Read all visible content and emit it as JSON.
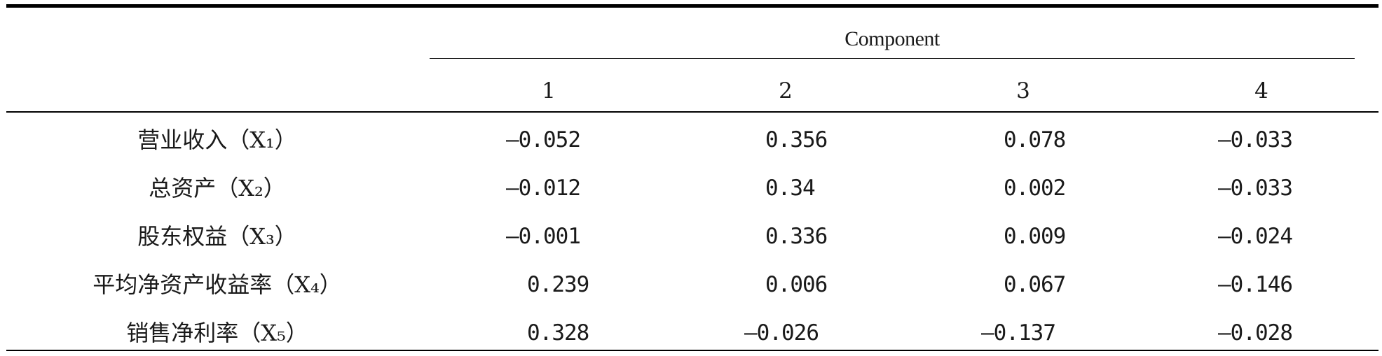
{
  "table": {
    "component_header": "Component",
    "columns": [
      "1",
      "2",
      "3",
      "4"
    ],
    "rows": [
      {
        "label": "营业收入（X₁）",
        "values": [
          "—0.052",
          "0.356",
          "0.078",
          "—0.033"
        ]
      },
      {
        "label": "总资产（X₂）",
        "values": [
          "—0.012",
          "0.34",
          "0.002",
          "—0.033"
        ]
      },
      {
        "label": "股东权益（X₃）",
        "values": [
          "—0.001",
          "0.336",
          "0.009",
          "—0.024"
        ]
      },
      {
        "label": "平均净资产收益率（X₄）",
        "values": [
          "0.239",
          "0.006",
          "0.067",
          "—0.146"
        ]
      },
      {
        "label": "销售净利率（X₅）",
        "values": [
          "0.328",
          "—0.026",
          "—0.137",
          "—0.028"
        ]
      }
    ]
  }
}
